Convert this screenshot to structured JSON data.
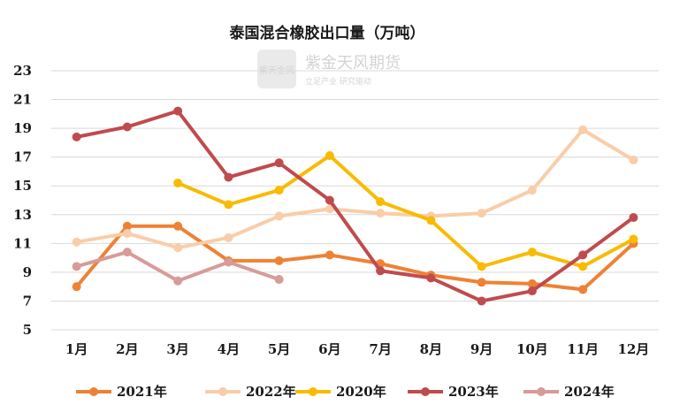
{
  "chart_data": {
    "type": "line",
    "title": "泰国混合橡胶出口量（万吨）",
    "categories": [
      "1月",
      "2月",
      "3月",
      "4月",
      "5月",
      "6月",
      "7月",
      "8月",
      "9月",
      "10月",
      "11月",
      "12月"
    ],
    "ylim": [
      5,
      23
    ],
    "yticks": [
      5,
      7,
      9,
      11,
      13,
      15,
      17,
      19,
      21,
      23
    ],
    "grid": true,
    "legend_position": "bottom",
    "series": [
      {
        "name": "2021年",
        "color": "#ee8234",
        "values": [
          8.0,
          12.2,
          12.2,
          9.8,
          9.8,
          10.2,
          9.6,
          8.8,
          8.3,
          8.2,
          7.8,
          11.0
        ]
      },
      {
        "name": "2022年",
        "color": "#f9cda8",
        "values": [
          11.1,
          11.7,
          10.7,
          11.4,
          12.9,
          13.4,
          13.1,
          12.9,
          13.1,
          14.7,
          18.9,
          16.8
        ]
      },
      {
        "name": "2020年",
        "color": "#f8bb00",
        "values": [
          null,
          null,
          15.2,
          13.7,
          14.7,
          17.1,
          13.9,
          12.6,
          9.4,
          10.4,
          9.4,
          11.3
        ]
      },
      {
        "name": "2023年",
        "color": "#bf4b4e",
        "values": [
          18.4,
          19.1,
          20.2,
          15.6,
          16.6,
          14.0,
          9.1,
          8.6,
          7.0,
          7.7,
          10.2,
          12.8
        ]
      },
      {
        "name": "2024年",
        "color": "#d79b98",
        "values": [
          9.4,
          10.4,
          8.4,
          9.7,
          8.5,
          null,
          null,
          null,
          null,
          null,
          null,
          null
        ]
      }
    ]
  },
  "watermark": {
    "logo_text": "紫天金风",
    "name": "紫金天风期货",
    "slogan": "立足产业 研究驱动"
  }
}
